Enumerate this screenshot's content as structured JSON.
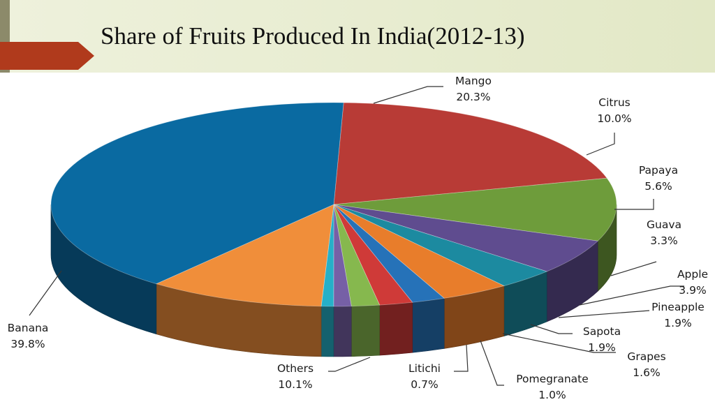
{
  "colors": {
    "title_bar": "#e6ebcf",
    "accent_arrow": "#b03a1c",
    "leader_line": "#333333"
  },
  "chart_data": {
    "type": "pie",
    "title": "Share of Fruits Produced In India(2012-13)",
    "slices": [
      {
        "label": "Mango",
        "value_text": "20.3%",
        "value": 20.3,
        "color": "#b83b36"
      },
      {
        "label": "Citrus",
        "value_text": "10.0%",
        "value": 10.0,
        "color": "#6e9c3b"
      },
      {
        "label": "Papaya",
        "value_text": "5.6%",
        "value": 5.6,
        "color": "#5f4c8f"
      },
      {
        "label": "Guava",
        "value_text": "3.3%",
        "value": 3.3,
        "color": "#1c8aa0"
      },
      {
        "label": "Apple",
        "value_text": "3.9%",
        "value": 3.9,
        "color": "#e87d2b"
      },
      {
        "label": "Pineapple",
        "value_text": "1.9%",
        "value": 1.9,
        "color": "#2672b8"
      },
      {
        "label": "Sapota",
        "value_text": "1.9%",
        "value": 1.9,
        "color": "#cf3a38"
      },
      {
        "label": "Grapes",
        "value_text": "1.6%",
        "value": 1.6,
        "color": "#86b84e"
      },
      {
        "label": "Pomegranate",
        "value_text": "1.0%",
        "value": 1.0,
        "color": "#7660a6"
      },
      {
        "label": "Litichi",
        "value_text": "0.7%",
        "value": 0.7,
        "color": "#26b0c8"
      },
      {
        "label": "Others",
        "value_text": "10.1%",
        "value": 10.1,
        "color": "#f08e3a"
      },
      {
        "label": "Banana",
        "value_text": "39.8%",
        "value": 39.8,
        "color": "#0a6aa1"
      }
    ]
  }
}
